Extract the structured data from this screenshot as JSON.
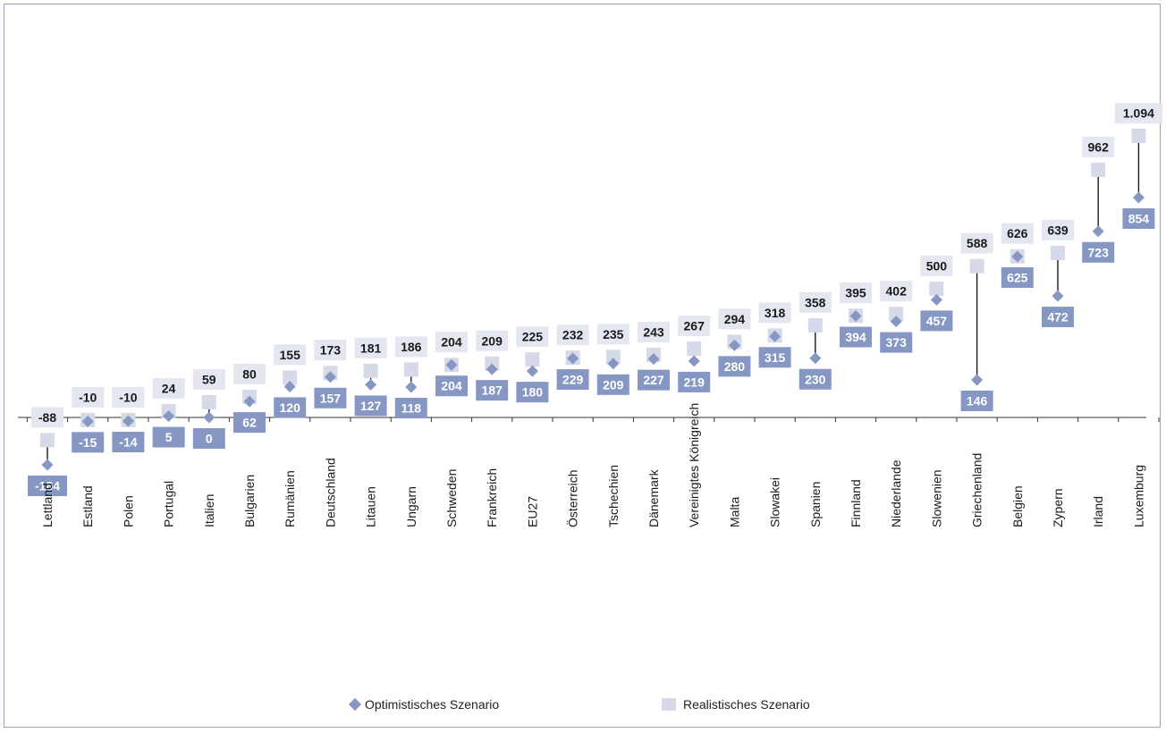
{
  "chart_data": {
    "type": "dot",
    "categories": [
      "Lettland",
      "Estland",
      "Polen",
      "Portugal",
      "Italien",
      "Bulgarien",
      "Rumänien",
      "Deutschland",
      "Litauen",
      "Ungarn",
      "Schweden",
      "Frankreich",
      "EU27",
      "Österreich",
      "Tschechien",
      "Dänemark",
      "Vereinigtes Königreich",
      "Malta",
      "Slowakei",
      "Spanien",
      "Finnland",
      "Niederlande",
      "Slowenien",
      "Griechenland",
      "Belgien",
      "Zypern",
      "Irland",
      "Luxemburg"
    ],
    "series": [
      {
        "name": "Optimistisches Szenario",
        "marker": "diamond",
        "color": "#8697c4",
        "values": [
          -184,
          -15,
          -14,
          5,
          0,
          62,
          120,
          157,
          127,
          118,
          204,
          187,
          180,
          229,
          209,
          227,
          219,
          280,
          315,
          230,
          394,
          373,
          457,
          146,
          625,
          472,
          723,
          854
        ],
        "labels": [
          "-184",
          "-15",
          "-14",
          "5",
          "0",
          "62",
          "120",
          "157",
          "127",
          "118",
          "204",
          "187",
          "180",
          "229",
          "209",
          "227",
          "219",
          "280",
          "315",
          "230",
          "394",
          "373",
          "457",
          "146",
          "625",
          "472",
          "723",
          "854"
        ]
      },
      {
        "name": "Realistisches Szenario",
        "marker": "square",
        "color": "#d5d9e8",
        "values": [
          -88,
          -10,
          -10,
          24,
          59,
          80,
          155,
          173,
          181,
          186,
          204,
          209,
          225,
          232,
          235,
          243,
          267,
          294,
          318,
          358,
          395,
          402,
          500,
          588,
          626,
          639,
          962,
          1094
        ],
        "labels": [
          "-88",
          "-10",
          "-10",
          "24",
          "59",
          "80",
          "155",
          "173",
          "181",
          "186",
          "204",
          "209",
          "225",
          "232",
          "235",
          "243",
          "267",
          "294",
          "318",
          "358",
          "395",
          "402",
          "500",
          "588",
          "626",
          "639",
          "962",
          "1.094"
        ]
      }
    ],
    "connector_color": "#1a1a1a",
    "label_box_color_optimistic": "#8697c4",
    "label_box_color_realistic": "#e4e7f0",
    "axis_color": "#333333",
    "grid": false,
    "legend_position": "bottom"
  },
  "legend": {
    "optimistic_label": "Optimistisches Szenario",
    "realistic_label": "Realistisches Szenario"
  }
}
